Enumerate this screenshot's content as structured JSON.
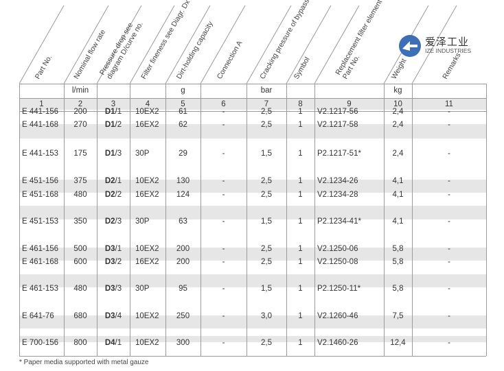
{
  "headers": [
    {
      "id": "1",
      "text": "Part No."
    },
    {
      "id": "2",
      "text": "Nominal flow rate"
    },
    {
      "id": "3",
      "line1": "Pressure drop see",
      "line2": "diagram D/curve no."
    },
    {
      "id": "4",
      "text": "Filter fineness see Diagr. Dx"
    },
    {
      "id": "5",
      "text": "Dirt-holding capacity"
    },
    {
      "id": "6",
      "text": "Connection A"
    },
    {
      "id": "7",
      "text": "Cracking pressure of bypass"
    },
    {
      "id": "8",
      "text": "Symbol"
    },
    {
      "id": "9",
      "line1": "Replacement filter element",
      "line2": "Part No."
    },
    {
      "id": "10",
      "text": "Weight"
    },
    {
      "id": "11",
      "text": "Remarks"
    }
  ],
  "units": [
    "",
    "l/min",
    "",
    "",
    "g",
    "",
    "bar",
    "",
    "",
    "kg",
    ""
  ],
  "column_numbers": [
    "1",
    "2",
    "3",
    "4",
    "5",
    "6",
    "7",
    "8",
    "9",
    "10",
    "11"
  ],
  "rows": [
    {
      "part": "E 441-156",
      "flow": "200",
      "dp_bold": "D1",
      "dp_curve": "/1",
      "fineness": "10EX2",
      "dirt": "61",
      "conn": "-",
      "crack": "2,5",
      "symbol": "1",
      "element": "V2.1217-56",
      "weight": "2,4",
      "remarks": "-"
    },
    {
      "part": "E 441-168",
      "flow": "270",
      "dp_bold": "D1",
      "dp_curve": "/2",
      "fineness": "16EX2",
      "dirt": "62",
      "conn": "-",
      "crack": "2,5",
      "symbol": "1",
      "element": "V2.1217-58",
      "weight": "2,4",
      "remarks": "-"
    },
    {
      "part": "E 441-153",
      "flow": "175",
      "dp_bold": "D1",
      "dp_curve": "/3",
      "fineness": "30P",
      "dirt": "29",
      "conn": "-",
      "crack": "1,5",
      "symbol": "1",
      "element": "P2.1217-51*",
      "weight": "2,4",
      "remarks": "-"
    },
    {
      "part": "E 451-156",
      "flow": "375",
      "dp_bold": "D2",
      "dp_curve": "/1",
      "fineness": "10EX2",
      "dirt": "130",
      "conn": "-",
      "crack": "2,5",
      "symbol": "1",
      "element": "V2.1234-26",
      "weight": "4,1",
      "remarks": "-"
    },
    {
      "part": "E 451-168",
      "flow": "480",
      "dp_bold": "D2",
      "dp_curve": "/2",
      "fineness": "16EX2",
      "dirt": "124",
      "conn": "-",
      "crack": "2,5",
      "symbol": "1",
      "element": "V2.1234-28",
      "weight": "4,1",
      "remarks": "-"
    },
    {
      "part": "E 451-153",
      "flow": "350",
      "dp_bold": "D2",
      "dp_curve": "/3",
      "fineness": "30P",
      "dirt": "63",
      "conn": "-",
      "crack": "1,5",
      "symbol": "1",
      "element": "P2.1234-41*",
      "weight": "4,1",
      "remarks": "-"
    },
    {
      "part": "E 461-156",
      "flow": "500",
      "dp_bold": "D3",
      "dp_curve": "/1",
      "fineness": "10EX2",
      "dirt": "200",
      "conn": "-",
      "crack": "2,5",
      "symbol": "1",
      "element": "V2.1250-06",
      "weight": "5,8",
      "remarks": "-"
    },
    {
      "part": "E 461-168",
      "flow": "600",
      "dp_bold": "D3",
      "dp_curve": "/2",
      "fineness": "16EX2",
      "dirt": "200",
      "conn": "-",
      "crack": "2,5",
      "symbol": "1",
      "element": "V2.1250-08",
      "weight": "5,8",
      "remarks": "-"
    },
    {
      "part": "E 461-153",
      "flow": "480",
      "dp_bold": "D3",
      "dp_curve": "/3",
      "fineness": "30P",
      "dirt": "95",
      "conn": "-",
      "crack": "1,5",
      "symbol": "1",
      "element": "P2.1250-11*",
      "weight": "5,8",
      "remarks": "-"
    },
    {
      "part": "E 641-76",
      "flow": "680",
      "dp_bold": "D3",
      "dp_curve": "/4",
      "fineness": "10EX2",
      "dirt": "250",
      "conn": "-",
      "crack": "3,0",
      "symbol": "1",
      "element": "V2.1260-46",
      "weight": "7,5",
      "remarks": "-"
    },
    {
      "part": "E 700-156",
      "flow": "800",
      "dp_bold": "D4",
      "dp_curve": "/1",
      "fineness": "10EX2",
      "dirt": "300",
      "conn": "-",
      "crack": "2,5",
      "symbol": "1",
      "element": "V2.1460-26",
      "weight": "12,4",
      "remarks": "-"
    }
  ],
  "footnote": "* Paper media supported with metal gauze",
  "logo": {
    "cn": "爱泽工业",
    "en": "IZE INDUSTRIES",
    "accent": "#3d6fb6",
    "mark_color": "#ffffff"
  },
  "colors": {
    "band": "#e6e6e6",
    "rule": "#9a9a9a",
    "text": "#333333"
  }
}
